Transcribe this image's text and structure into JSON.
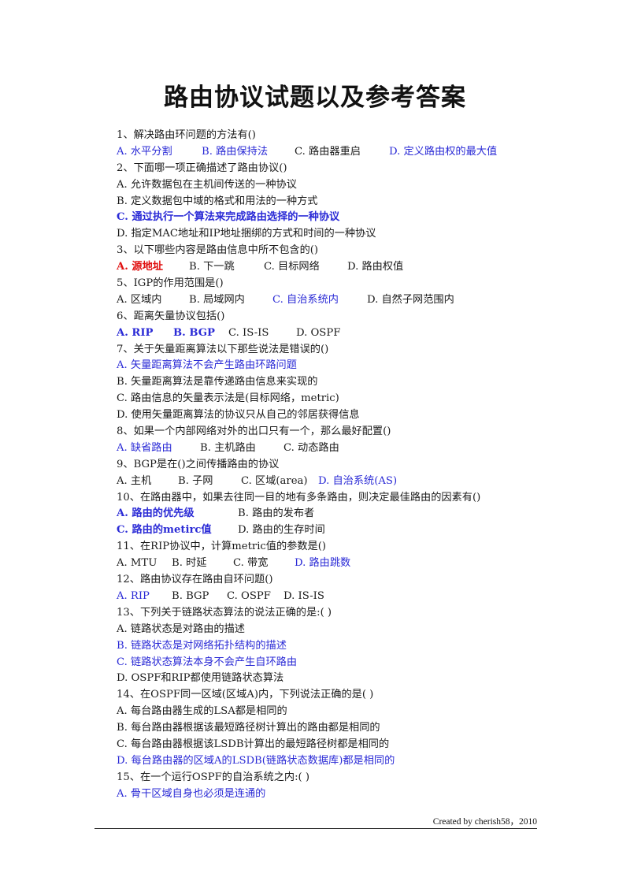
{
  "title": "路由协议试题以及参考答案",
  "footer": "Created by cherish58，2010",
  "lines": [
    [
      {
        "t": "1、解决路由环问题的方法有()",
        "c": "black"
      }
    ],
    [
      {
        "t": "A. 水平分割",
        "c": "blue",
        "w": 108
      },
      {
        "t": "B. 路由保持法",
        "c": "blue",
        "w": 118
      },
      {
        "t": "C. 路由器重启",
        "c": "black",
        "w": 120
      },
      {
        "t": "D. 定义路由权的最大值",
        "c": "blue"
      }
    ],
    [
      {
        "t": "2、下面哪一项正确描述了路由协议()",
        "c": "black"
      }
    ],
    [
      {
        "t": "A. 允许数据包在主机间传送的一种协议",
        "c": "black"
      }
    ],
    [
      {
        "t": "B. 定义数据包中域的格式和用法的一种方式",
        "c": "black"
      }
    ],
    [
      {
        "t": "C. 通过执行一个算法来完成路由选择的一种协议",
        "c": "blue",
        "b": true
      }
    ],
    [
      {
        "t": "D. 指定MAC地址和IP地址捆绑的方式和时间的一种协议",
        "c": "black"
      }
    ],
    [
      {
        "t": "3、以下哪些内容是路由信息中所不包含的()",
        "c": "black"
      }
    ],
    [
      {
        "t": "A. 源地址",
        "c": "red",
        "b": true,
        "w": 92
      },
      {
        "t": "B. 下一跳",
        "c": "black",
        "w": 95
      },
      {
        "t": "C. 目标网络",
        "c": "black",
        "w": 106
      },
      {
        "t": "D. 路由权值",
        "c": "black"
      }
    ],
    [
      {
        "t": "5、IGP的作用范围是()",
        "c": "black"
      }
    ],
    [
      {
        "t": "A. 区域内",
        "c": "black",
        "w": 92
      },
      {
        "t": "B. 局域网内",
        "c": "black",
        "w": 106
      },
      {
        "t": "C. 自治系统内",
        "c": "blue",
        "w": 120
      },
      {
        "t": "D. 自然子网范围内",
        "c": "black"
      }
    ],
    [
      {
        "t": "6、距离矢量协议包括()",
        "c": "black"
      }
    ],
    [
      {
        "t": "A. RIP",
        "c": "blue",
        "b": true,
        "w": 72
      },
      {
        "t": "B. BGP",
        "c": "blue",
        "b": true,
        "w": 70
      },
      {
        "t": "C. IS-IS",
        "c": "black",
        "w": 86
      },
      {
        "t": "D. OSPF",
        "c": "black"
      }
    ],
    [
      {
        "t": "7、关于矢量距离算法以下那些说法是错误的()",
        "c": "black"
      }
    ],
    [
      {
        "t": "A. 矢量距离算法不会产生路由环路问题",
        "c": "blue"
      }
    ],
    [
      {
        "t": "B. 矢量距离算法是靠传递路由信息来实现的",
        "c": "black"
      }
    ],
    [
      {
        "t": "C. 路由信息的矢量表示法是(目标网络，metric)",
        "c": "black"
      }
    ],
    [
      {
        "t": "D. 使用矢量距离算法的协议只从自己的邻居获得信息",
        "c": "black"
      }
    ],
    [
      {
        "t": "8、如果一个内部网络对外的出口只有一个，那么最好配置()",
        "c": "black"
      }
    ],
    [
      {
        "t": "A. 缺省路由",
        "c": "blue",
        "w": 106
      },
      {
        "t": "B. 主机路由",
        "c": "black",
        "w": 106
      },
      {
        "t": "C. 动态路由",
        "c": "black"
      }
    ],
    [
      {
        "t": "9、BGP是在()之间传播路由的协议",
        "c": "black"
      }
    ],
    [
      {
        "t": "A. 主机",
        "c": "black",
        "w": 78
      },
      {
        "t": "B. 子网",
        "c": "black",
        "w": 80
      },
      {
        "t": "C. 区域(area)",
        "c": "black",
        "w": 98
      },
      {
        "t": "D. 自治系统(AS)",
        "c": "blue"
      }
    ],
    [
      {
        "t": "10、在路由器中，如果去往同一目的地有多条路由，则决定最佳路由的因素有()",
        "c": "black"
      }
    ],
    [
      {
        "t": "A. 路由的优先级",
        "c": "blue",
        "b": true,
        "w": 154
      },
      {
        "t": "B. 路由的发布者",
        "c": "black"
      }
    ],
    [
      {
        "t": "C. 路由的metirc值",
        "c": "blue",
        "b": true,
        "w": 154
      },
      {
        "t": "D. 路由的生存时间",
        "c": "black"
      }
    ],
    [
      {
        "t": "11、在RIP协议中，计算metric值的参数是()",
        "c": "black"
      }
    ],
    [
      {
        "t": "A. MTU",
        "c": "black",
        "w": 70
      },
      {
        "t": "B. 时延",
        "c": "black",
        "w": 78
      },
      {
        "t": "C. 带宽",
        "c": "black",
        "w": 78
      },
      {
        "t": "D. 路由跳数",
        "c": "blue"
      }
    ],
    [
      {
        "t": "12、路由协议存在路由自环问题()",
        "c": "black"
      }
    ],
    [
      {
        "t": "A. RIP",
        "c": "blue",
        "w": 70
      },
      {
        "t": "B. BGP",
        "c": "black",
        "w": 70
      },
      {
        "t": "C. OSPF",
        "c": "black",
        "w": 72
      },
      {
        "t": "D. IS-IS",
        "c": "black"
      }
    ],
    [
      {
        "t": "13、下列关于链路状态算法的说法正确的是:( )",
        "c": "black"
      }
    ],
    [
      {
        "t": "A. 链路状态是对路由的描述",
        "c": "black"
      }
    ],
    [
      {
        "t": "B. 链路状态是对网络拓扑结构的描述",
        "c": "blue"
      }
    ],
    [
      {
        "t": "C. 链路状态算法本身不会产生自环路由",
        "c": "blue"
      }
    ],
    [
      {
        "t": "D. OSPF和RIP都使用链路状态算法",
        "c": "black"
      }
    ],
    [
      {
        "t": "14、在OSPF同一区域(区域A)内，下列说法正确的是( )",
        "c": "black"
      }
    ],
    [
      {
        "t": "A. 每台路由器生成的LSA都是相同的",
        "c": "black"
      }
    ],
    [
      {
        "t": "B. 每台路由器根据该最短路径树计算出的路由都是相同的",
        "c": "black"
      }
    ],
    [
      {
        "t": "C. 每台路由器根据该LSDB计算出的最短路径树都是相同的",
        "c": "black"
      }
    ],
    [
      {
        "t": "D. 每台路由器的区域A的LSDB(链路状态数据库)都是相同的",
        "c": "blue"
      }
    ],
    [
      {
        "t": "15、在一个运行OSPF的自治系统之内:( )",
        "c": "black"
      }
    ],
    [
      {
        "t": "A. 骨干区域自身也必须是连通的",
        "c": "blue"
      }
    ]
  ]
}
